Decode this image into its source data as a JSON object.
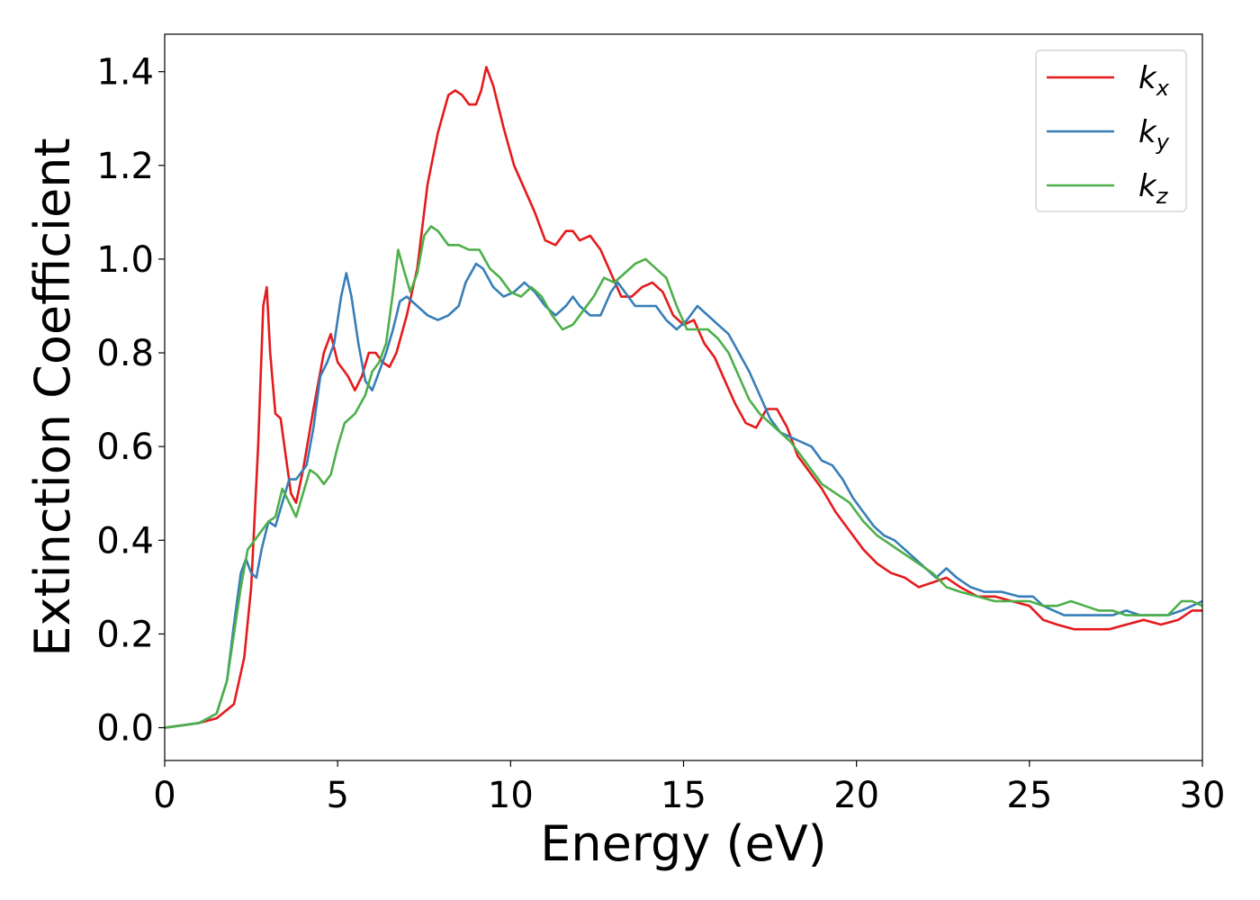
{
  "chart_data": {
    "type": "line",
    "xlabel": "Energy (eV)",
    "ylabel": "Extinction Coefficient",
    "xlim": [
      0,
      30
    ],
    "ylim": [
      -0.07,
      1.48
    ],
    "xticks": [
      0,
      5,
      10,
      15,
      20,
      25,
      30
    ],
    "xtick_labels": [
      "0",
      "5",
      "10",
      "15",
      "20",
      "25",
      "30"
    ],
    "yticks": [
      0.0,
      0.2,
      0.4,
      0.6,
      0.8,
      1.0,
      1.2,
      1.4
    ],
    "ytick_labels": [
      "0.0",
      "0.2",
      "0.4",
      "0.6",
      "0.8",
      "1.0",
      "1.2",
      "1.4"
    ],
    "grid": false,
    "legend_position": "top-right",
    "series": [
      {
        "name": "k_x",
        "label_main": "k",
        "label_sub": "x",
        "color": "#e41a1c",
        "points": [
          [
            0,
            0
          ],
          [
            1,
            0.01
          ],
          [
            1.5,
            0.02
          ],
          [
            2,
            0.05
          ],
          [
            2.3,
            0.15
          ],
          [
            2.5,
            0.3
          ],
          [
            2.7,
            0.6
          ],
          [
            2.85,
            0.9
          ],
          [
            2.95,
            0.94
          ],
          [
            3.05,
            0.8
          ],
          [
            3.2,
            0.67
          ],
          [
            3.35,
            0.66
          ],
          [
            3.5,
            0.58
          ],
          [
            3.65,
            0.5
          ],
          [
            3.8,
            0.48
          ],
          [
            4,
            0.55
          ],
          [
            4.3,
            0.68
          ],
          [
            4.6,
            0.8
          ],
          [
            4.8,
            0.84
          ],
          [
            5,
            0.78
          ],
          [
            5.3,
            0.75
          ],
          [
            5.5,
            0.72
          ],
          [
            5.7,
            0.75
          ],
          [
            5.9,
            0.8
          ],
          [
            6.1,
            0.8
          ],
          [
            6.3,
            0.78
          ],
          [
            6.5,
            0.77
          ],
          [
            6.7,
            0.8
          ],
          [
            7,
            0.88
          ],
          [
            7.3,
            0.98
          ],
          [
            7.6,
            1.16
          ],
          [
            7.9,
            1.27
          ],
          [
            8.2,
            1.35
          ],
          [
            8.4,
            1.36
          ],
          [
            8.6,
            1.35
          ],
          [
            8.8,
            1.33
          ],
          [
            9,
            1.33
          ],
          [
            9.15,
            1.36
          ],
          [
            9.3,
            1.41
          ],
          [
            9.5,
            1.37
          ],
          [
            9.8,
            1.28
          ],
          [
            10.1,
            1.2
          ],
          [
            10.4,
            1.15
          ],
          [
            10.7,
            1.1
          ],
          [
            11,
            1.04
          ],
          [
            11.3,
            1.03
          ],
          [
            11.6,
            1.06
          ],
          [
            11.8,
            1.06
          ],
          [
            12,
            1.04
          ],
          [
            12.3,
            1.05
          ],
          [
            12.6,
            1.02
          ],
          [
            12.9,
            0.97
          ],
          [
            13.2,
            0.92
          ],
          [
            13.5,
            0.92
          ],
          [
            13.8,
            0.94
          ],
          [
            14.1,
            0.95
          ],
          [
            14.4,
            0.93
          ],
          [
            14.7,
            0.88
          ],
          [
            15,
            0.86
          ],
          [
            15.3,
            0.87
          ],
          [
            15.6,
            0.82
          ],
          [
            15.9,
            0.79
          ],
          [
            16.2,
            0.74
          ],
          [
            16.5,
            0.69
          ],
          [
            16.8,
            0.65
          ],
          [
            17.1,
            0.64
          ],
          [
            17.4,
            0.68
          ],
          [
            17.7,
            0.68
          ],
          [
            18,
            0.64
          ],
          [
            18.3,
            0.58
          ],
          [
            18.6,
            0.55
          ],
          [
            19,
            0.51
          ],
          [
            19.4,
            0.46
          ],
          [
            19.8,
            0.42
          ],
          [
            20.2,
            0.38
          ],
          [
            20.6,
            0.35
          ],
          [
            21,
            0.33
          ],
          [
            21.4,
            0.32
          ],
          [
            21.8,
            0.3
          ],
          [
            22.2,
            0.31
          ],
          [
            22.6,
            0.32
          ],
          [
            23,
            0.3
          ],
          [
            23.5,
            0.28
          ],
          [
            24,
            0.28
          ],
          [
            24.5,
            0.27
          ],
          [
            25,
            0.26
          ],
          [
            25.4,
            0.23
          ],
          [
            25.8,
            0.22
          ],
          [
            26.3,
            0.21
          ],
          [
            26.8,
            0.21
          ],
          [
            27.3,
            0.21
          ],
          [
            27.8,
            0.22
          ],
          [
            28.3,
            0.23
          ],
          [
            28.8,
            0.22
          ],
          [
            29.3,
            0.23
          ],
          [
            29.7,
            0.25
          ],
          [
            30,
            0.25
          ]
        ]
      },
      {
        "name": "k_y",
        "label_main": "k",
        "label_sub": "y",
        "color": "#377eb8",
        "points": [
          [
            0,
            0
          ],
          [
            1,
            0.01
          ],
          [
            1.5,
            0.03
          ],
          [
            1.8,
            0.1
          ],
          [
            2,
            0.22
          ],
          [
            2.2,
            0.33
          ],
          [
            2.35,
            0.36
          ],
          [
            2.5,
            0.33
          ],
          [
            2.65,
            0.32
          ],
          [
            2.8,
            0.38
          ],
          [
            3,
            0.44
          ],
          [
            3.2,
            0.43
          ],
          [
            3.4,
            0.48
          ],
          [
            3.6,
            0.53
          ],
          [
            3.8,
            0.53
          ],
          [
            4.1,
            0.56
          ],
          [
            4.3,
            0.64
          ],
          [
            4.5,
            0.75
          ],
          [
            4.7,
            0.78
          ],
          [
            4.9,
            0.82
          ],
          [
            5.1,
            0.92
          ],
          [
            5.25,
            0.97
          ],
          [
            5.4,
            0.92
          ],
          [
            5.6,
            0.82
          ],
          [
            5.8,
            0.74
          ],
          [
            6,
            0.72
          ],
          [
            6.2,
            0.76
          ],
          [
            6.4,
            0.8
          ],
          [
            6.6,
            0.85
          ],
          [
            6.8,
            0.91
          ],
          [
            7,
            0.92
          ],
          [
            7.3,
            0.9
          ],
          [
            7.6,
            0.88
          ],
          [
            7.9,
            0.87
          ],
          [
            8.2,
            0.88
          ],
          [
            8.5,
            0.9
          ],
          [
            8.7,
            0.95
          ],
          [
            9,
            0.99
          ],
          [
            9.2,
            0.98
          ],
          [
            9.5,
            0.94
          ],
          [
            9.8,
            0.92
          ],
          [
            10.1,
            0.93
          ],
          [
            10.4,
            0.95
          ],
          [
            10.7,
            0.93
          ],
          [
            11,
            0.9
          ],
          [
            11.3,
            0.88
          ],
          [
            11.6,
            0.9
          ],
          [
            11.8,
            0.92
          ],
          [
            12,
            0.9
          ],
          [
            12.3,
            0.88
          ],
          [
            12.6,
            0.88
          ],
          [
            12.9,
            0.93
          ],
          [
            13.1,
            0.95
          ],
          [
            13.3,
            0.93
          ],
          [
            13.6,
            0.9
          ],
          [
            13.9,
            0.9
          ],
          [
            14.2,
            0.9
          ],
          [
            14.5,
            0.87
          ],
          [
            14.8,
            0.85
          ],
          [
            15.1,
            0.87
          ],
          [
            15.4,
            0.9
          ],
          [
            15.7,
            0.88
          ],
          [
            16,
            0.86
          ],
          [
            16.3,
            0.84
          ],
          [
            16.6,
            0.8
          ],
          [
            16.9,
            0.76
          ],
          [
            17.2,
            0.71
          ],
          [
            17.5,
            0.66
          ],
          [
            17.8,
            0.63
          ],
          [
            18.1,
            0.62
          ],
          [
            18.4,
            0.61
          ],
          [
            18.7,
            0.6
          ],
          [
            19,
            0.57
          ],
          [
            19.3,
            0.56
          ],
          [
            19.6,
            0.53
          ],
          [
            19.9,
            0.49
          ],
          [
            20.2,
            0.46
          ],
          [
            20.5,
            0.43
          ],
          [
            20.8,
            0.41
          ],
          [
            21.1,
            0.4
          ],
          [
            21.4,
            0.38
          ],
          [
            21.7,
            0.36
          ],
          [
            22,
            0.34
          ],
          [
            22.3,
            0.32
          ],
          [
            22.6,
            0.34
          ],
          [
            22.9,
            0.32
          ],
          [
            23.3,
            0.3
          ],
          [
            23.7,
            0.29
          ],
          [
            24.2,
            0.29
          ],
          [
            24.7,
            0.28
          ],
          [
            25.1,
            0.28
          ],
          [
            25.4,
            0.26
          ],
          [
            25.7,
            0.25
          ],
          [
            26,
            0.24
          ],
          [
            26.5,
            0.24
          ],
          [
            27,
            0.24
          ],
          [
            27.4,
            0.24
          ],
          [
            27.8,
            0.25
          ],
          [
            28.2,
            0.24
          ],
          [
            28.6,
            0.24
          ],
          [
            29,
            0.24
          ],
          [
            29.4,
            0.25
          ],
          [
            29.7,
            0.26
          ],
          [
            30,
            0.27
          ]
        ]
      },
      {
        "name": "k_z",
        "label_main": "k",
        "label_sub": "z",
        "color": "#4daf4a",
        "points": [
          [
            0,
            0
          ],
          [
            1,
            0.01
          ],
          [
            1.5,
            0.03
          ],
          [
            1.8,
            0.1
          ],
          [
            2,
            0.2
          ],
          [
            2.2,
            0.3
          ],
          [
            2.4,
            0.38
          ],
          [
            2.6,
            0.4
          ],
          [
            2.8,
            0.42
          ],
          [
            3,
            0.44
          ],
          [
            3.2,
            0.45
          ],
          [
            3.4,
            0.51
          ],
          [
            3.6,
            0.48
          ],
          [
            3.8,
            0.45
          ],
          [
            4,
            0.5
          ],
          [
            4.2,
            0.55
          ],
          [
            4.4,
            0.54
          ],
          [
            4.6,
            0.52
          ],
          [
            4.8,
            0.54
          ],
          [
            5,
            0.6
          ],
          [
            5.2,
            0.65
          ],
          [
            5.5,
            0.67
          ],
          [
            5.8,
            0.71
          ],
          [
            6,
            0.76
          ],
          [
            6.2,
            0.78
          ],
          [
            6.4,
            0.82
          ],
          [
            6.6,
            0.93
          ],
          [
            6.75,
            1.02
          ],
          [
            6.9,
            0.98
          ],
          [
            7.1,
            0.93
          ],
          [
            7.3,
            0.97
          ],
          [
            7.5,
            1.05
          ],
          [
            7.7,
            1.07
          ],
          [
            7.9,
            1.06
          ],
          [
            8.2,
            1.03
          ],
          [
            8.5,
            1.03
          ],
          [
            8.8,
            1.02
          ],
          [
            9.1,
            1.02
          ],
          [
            9.4,
            0.98
          ],
          [
            9.7,
            0.96
          ],
          [
            10,
            0.93
          ],
          [
            10.3,
            0.92
          ],
          [
            10.6,
            0.94
          ],
          [
            10.9,
            0.92
          ],
          [
            11.2,
            0.88
          ],
          [
            11.5,
            0.85
          ],
          [
            11.8,
            0.86
          ],
          [
            12.1,
            0.89
          ],
          [
            12.4,
            0.92
          ],
          [
            12.7,
            0.96
          ],
          [
            13,
            0.95
          ],
          [
            13.3,
            0.97
          ],
          [
            13.6,
            0.99
          ],
          [
            13.9,
            1.0
          ],
          [
            14.2,
            0.98
          ],
          [
            14.5,
            0.96
          ],
          [
            14.8,
            0.9
          ],
          [
            15.1,
            0.85
          ],
          [
            15.4,
            0.85
          ],
          [
            15.7,
            0.85
          ],
          [
            16,
            0.83
          ],
          [
            16.3,
            0.8
          ],
          [
            16.6,
            0.75
          ],
          [
            16.9,
            0.7
          ],
          [
            17.2,
            0.67
          ],
          [
            17.5,
            0.65
          ],
          [
            17.8,
            0.63
          ],
          [
            18.1,
            0.61
          ],
          [
            18.4,
            0.58
          ],
          [
            18.7,
            0.55
          ],
          [
            19,
            0.52
          ],
          [
            19.4,
            0.5
          ],
          [
            19.8,
            0.48
          ],
          [
            20.2,
            0.44
          ],
          [
            20.6,
            0.41
          ],
          [
            21,
            0.39
          ],
          [
            21.4,
            0.37
          ],
          [
            21.8,
            0.35
          ],
          [
            22.2,
            0.33
          ],
          [
            22.6,
            0.3
          ],
          [
            23,
            0.29
          ],
          [
            23.5,
            0.28
          ],
          [
            24,
            0.27
          ],
          [
            24.5,
            0.27
          ],
          [
            25,
            0.27
          ],
          [
            25.4,
            0.26
          ],
          [
            25.8,
            0.26
          ],
          [
            26.2,
            0.27
          ],
          [
            26.6,
            0.26
          ],
          [
            27,
            0.25
          ],
          [
            27.4,
            0.25
          ],
          [
            27.8,
            0.24
          ],
          [
            28.2,
            0.24
          ],
          [
            28.6,
            0.24
          ],
          [
            29,
            0.24
          ],
          [
            29.4,
            0.27
          ],
          [
            29.7,
            0.27
          ],
          [
            30,
            0.26
          ]
        ]
      }
    ]
  }
}
